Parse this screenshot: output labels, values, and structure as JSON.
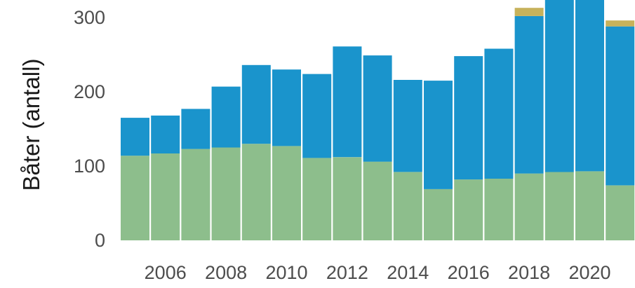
{
  "chart_data": {
    "type": "bar",
    "stacked": true,
    "title": "",
    "xlabel": "",
    "ylabel": "Båter (antall)",
    "ylim": [
      0,
      330
    ],
    "yticks": [
      0,
      100,
      200,
      300
    ],
    "grid": false,
    "x_tick_labels": [
      "2006",
      "2008",
      "2010",
      "2012",
      "2014",
      "2016",
      "2018",
      "2020"
    ],
    "categories": [
      "2005",
      "2006",
      "2007",
      "2008",
      "2009",
      "2010",
      "2011",
      "2012",
      "2013",
      "2014",
      "2015",
      "2016",
      "2017",
      "2018",
      "2019",
      "2020",
      "2021"
    ],
    "series": [
      {
        "color": "#8dbe8c",
        "values": [
          114,
          117,
          123,
          125,
          130,
          127,
          111,
          112,
          106,
          92,
          69,
          82,
          83,
          90,
          92,
          93,
          74
        ]
      },
      {
        "color": "#1a94cc",
        "values": [
          51,
          51,
          54,
          82,
          106,
          103,
          113,
          149,
          143,
          124,
          146,
          166,
          175,
          212,
          238,
          240,
          214
        ]
      },
      {
        "color": "#c7b25b",
        "values": [
          0,
          0,
          0,
          0,
          0,
          0,
          0,
          0,
          0,
          0,
          0,
          0,
          0,
          11,
          0,
          0,
          8
        ]
      }
    ]
  }
}
